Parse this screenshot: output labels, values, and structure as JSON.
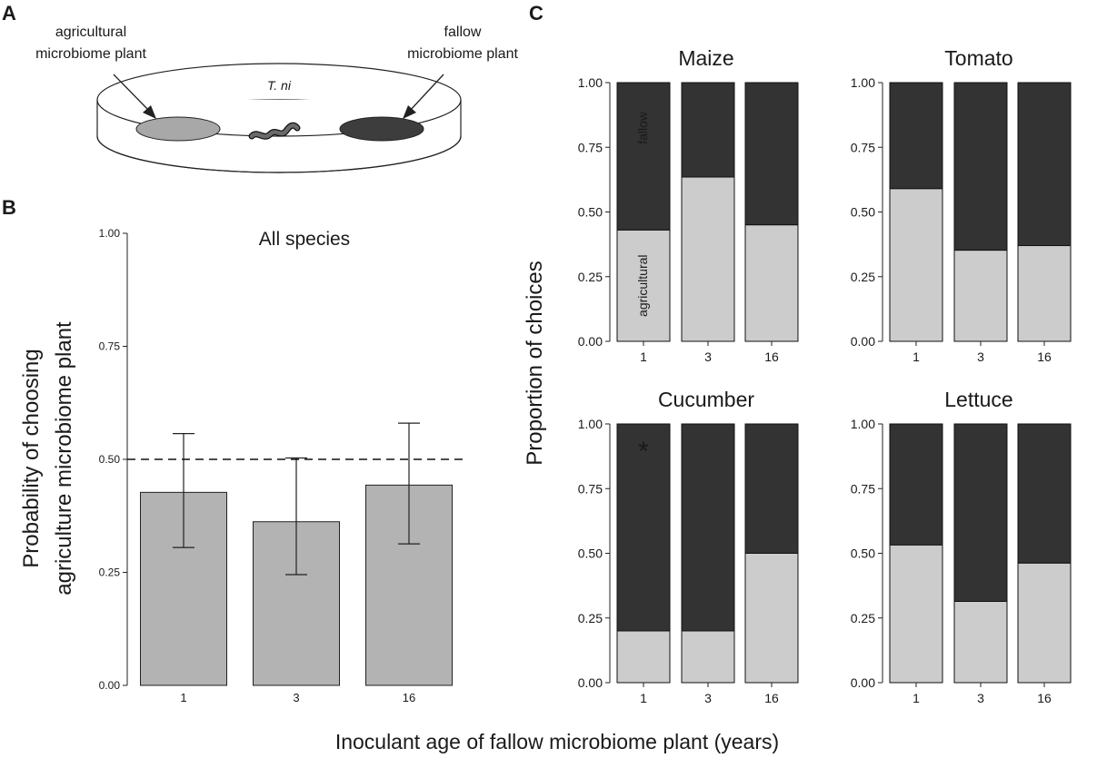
{
  "panel_labels": {
    "a": "A",
    "b": "B",
    "c": "C"
  },
  "diagram": {
    "left_label_1": "agricultural",
    "left_label_2": "microbiome plant",
    "right_label_1": "fallow",
    "right_label_2": "microbiome plant",
    "center_label": "T. ni"
  },
  "common_xlabel": "Inoculant age of fallow microbiome plant (years)",
  "c_ylabel": "Proportion of  choices",
  "chart_data": [
    {
      "id": "B",
      "type": "bar",
      "title": "All species",
      "ylabel": "Probability of choosing",
      "ylabel2": "agriculture microbiome plant",
      "categories": [
        "1",
        "3",
        "16"
      ],
      "values": [
        0.427,
        0.362,
        0.443
      ],
      "error_low": [
        0.305,
        0.245,
        0.313
      ],
      "error_high": [
        0.557,
        0.503,
        0.58
      ],
      "reference_line": 0.5,
      "ylim": [
        0,
        1
      ],
      "yticks": [
        "0.00",
        "0.25",
        "0.50",
        "0.75",
        "1.00"
      ],
      "bar_color": "#b3b3b3"
    },
    {
      "id": "C",
      "type": "bar",
      "stacked": true,
      "series_names": [
        "agricultural",
        "fallow"
      ],
      "series_colors": [
        "#cccccc",
        "#333333"
      ],
      "ylim": [
        0,
        1
      ],
      "yticks": [
        "0.00",
        "0.25",
        "0.50",
        "0.75",
        "1.00"
      ],
      "panels": [
        {
          "title": "Maize",
          "categories": [
            "1",
            "3",
            "16"
          ],
          "agricultural": [
            0.43,
            0.635,
            0.45
          ],
          "fallow": [
            0.57,
            0.365,
            0.55
          ],
          "inner_labels": [
            "agricultural",
            "fallow"
          ]
        },
        {
          "title": "Tomato",
          "categories": [
            "1",
            "3",
            "16"
          ],
          "agricultural": [
            0.59,
            0.352,
            0.37
          ],
          "fallow": [
            0.41,
            0.648,
            0.63
          ]
        },
        {
          "title": "Cucumber",
          "categories": [
            "1",
            "3",
            "16"
          ],
          "agricultural": [
            0.2,
            0.2,
            0.5
          ],
          "fallow": [
            0.8,
            0.8,
            0.5
          ],
          "annotation": "*"
        },
        {
          "title": "Lettuce",
          "categories": [
            "1",
            "3",
            "16"
          ],
          "agricultural": [
            0.532,
            0.314,
            0.462
          ],
          "fallow": [
            0.468,
            0.686,
            0.538
          ]
        }
      ]
    }
  ]
}
